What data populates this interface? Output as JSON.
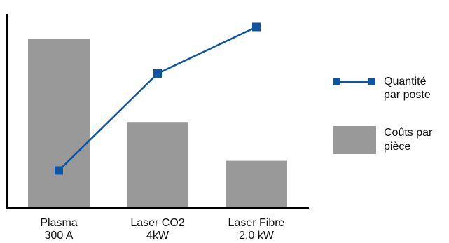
{
  "chart_data": {
    "type": "bar",
    "categories": [
      [
        "Plasma",
        "300 A"
      ],
      [
        "Laser CO2",
        "4kW"
      ],
      [
        "Laser Fibre",
        "2.0 kW"
      ]
    ],
    "series": [
      {
        "name": "Coûts par pièce",
        "kind": "bar",
        "values": [
          262,
          133,
          73
        ],
        "color": "#999999"
      },
      {
        "name": "Quantité par poste",
        "kind": "line",
        "values": [
          58,
          208,
          280
        ],
        "color": "#0a55a5"
      }
    ],
    "title": "",
    "xlabel": "",
    "ylabel": "",
    "ylim": [
      0,
      300
    ],
    "grid": false,
    "axes": {
      "y_ticks": false
    },
    "legend": {
      "position": "right",
      "items": [
        {
          "lines": [
            "Quantité",
            "par poste"
          ],
          "symbol": "line-marker",
          "color": "#0a55a5"
        },
        {
          "lines": [
            "Coûts par",
            "pièce"
          ],
          "symbol": "box",
          "color": "#999999"
        }
      ]
    }
  }
}
